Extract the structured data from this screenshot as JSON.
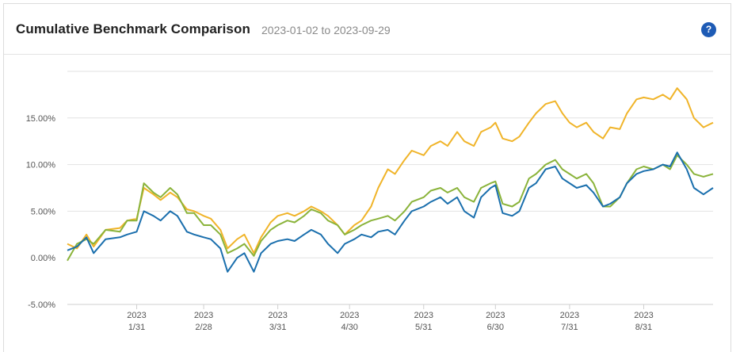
{
  "header": {
    "title": "Cumulative Benchmark Comparison",
    "date_range": "2023-01-02 to 2023-09-29",
    "help_glyph": "?"
  },
  "chart_data": {
    "type": "line",
    "ylim": [
      -5,
      20
    ],
    "y_ticks": [
      -5,
      0,
      5,
      10,
      15
    ],
    "y_tick_labels": [
      "-5.00%",
      "0.00%",
      "5.00%",
      "10.00%",
      "15.00%"
    ],
    "x_range": [
      "2023-01-02",
      "2023-09-29"
    ],
    "x_ticks": [
      {
        "date": "2023-01-31",
        "year": "2023",
        "md": "1/31"
      },
      {
        "date": "2023-02-28",
        "year": "2023",
        "md": "2/28"
      },
      {
        "date": "2023-03-31",
        "year": "2023",
        "md": "3/31"
      },
      {
        "date": "2023-04-30",
        "year": "2023",
        "md": "4/30"
      },
      {
        "date": "2023-05-31",
        "year": "2023",
        "md": "5/31"
      },
      {
        "date": "2023-06-30",
        "year": "2023",
        "md": "6/30"
      },
      {
        "date": "2023-07-31",
        "year": "2023",
        "md": "7/31"
      },
      {
        "date": "2023-08-31",
        "year": "2023",
        "md": "8/31"
      }
    ],
    "grid": "horizontal",
    "series": [
      {
        "color": "#f0b429",
        "points": [
          [
            "2023-01-02",
            1.5
          ],
          [
            "2023-01-06",
            1.0
          ],
          [
            "2023-01-10",
            2.5
          ],
          [
            "2023-01-13",
            1.2
          ],
          [
            "2023-01-18",
            3.0
          ],
          [
            "2023-01-24",
            3.2
          ],
          [
            "2023-01-27",
            4.0
          ],
          [
            "2023-01-31",
            4.2
          ],
          [
            "2023-02-03",
            7.5
          ],
          [
            "2023-02-07",
            6.8
          ],
          [
            "2023-02-10",
            6.2
          ],
          [
            "2023-02-14",
            7.0
          ],
          [
            "2023-02-17",
            6.5
          ],
          [
            "2023-02-21",
            5.2
          ],
          [
            "2023-02-24",
            5.0
          ],
          [
            "2023-02-28",
            4.5
          ],
          [
            "2023-03-03",
            4.2
          ],
          [
            "2023-03-07",
            3.0
          ],
          [
            "2023-03-10",
            1.0
          ],
          [
            "2023-03-14",
            2.0
          ],
          [
            "2023-03-17",
            2.5
          ],
          [
            "2023-03-21",
            0.5
          ],
          [
            "2023-03-24",
            2.2
          ],
          [
            "2023-03-28",
            3.8
          ],
          [
            "2023-03-31",
            4.5
          ],
          [
            "2023-04-04",
            4.8
          ],
          [
            "2023-04-07",
            4.5
          ],
          [
            "2023-04-11",
            5.0
          ],
          [
            "2023-04-14",
            5.5
          ],
          [
            "2023-04-18",
            5.0
          ],
          [
            "2023-04-21",
            4.5
          ],
          [
            "2023-04-25",
            3.5
          ],
          [
            "2023-04-28",
            2.5
          ],
          [
            "2023-05-02",
            3.5
          ],
          [
            "2023-05-05",
            4.0
          ],
          [
            "2023-05-09",
            5.5
          ],
          [
            "2023-05-12",
            7.5
          ],
          [
            "2023-05-16",
            9.5
          ],
          [
            "2023-05-19",
            9.0
          ],
          [
            "2023-05-23",
            10.5
          ],
          [
            "2023-05-26",
            11.5
          ],
          [
            "2023-05-31",
            11.0
          ],
          [
            "2023-06-03",
            12.0
          ],
          [
            "2023-06-07",
            12.5
          ],
          [
            "2023-06-10",
            12.0
          ],
          [
            "2023-06-14",
            13.5
          ],
          [
            "2023-06-17",
            12.5
          ],
          [
            "2023-06-21",
            12.0
          ],
          [
            "2023-06-24",
            13.5
          ],
          [
            "2023-06-28",
            14.0
          ],
          [
            "2023-06-30",
            14.5
          ],
          [
            "2023-07-03",
            12.8
          ],
          [
            "2023-07-07",
            12.5
          ],
          [
            "2023-07-10",
            13.0
          ],
          [
            "2023-07-14",
            14.5
          ],
          [
            "2023-07-17",
            15.5
          ],
          [
            "2023-07-21",
            16.5
          ],
          [
            "2023-07-25",
            16.8
          ],
          [
            "2023-07-28",
            15.5
          ],
          [
            "2023-07-31",
            14.5
          ],
          [
            "2023-08-03",
            14.0
          ],
          [
            "2023-08-07",
            14.5
          ],
          [
            "2023-08-10",
            13.5
          ],
          [
            "2023-08-14",
            12.8
          ],
          [
            "2023-08-17",
            14.0
          ],
          [
            "2023-08-21",
            13.8
          ],
          [
            "2023-08-24",
            15.5
          ],
          [
            "2023-08-28",
            17.0
          ],
          [
            "2023-08-31",
            17.2
          ],
          [
            "2023-09-04",
            17.0
          ],
          [
            "2023-09-08",
            17.5
          ],
          [
            "2023-09-11",
            17.0
          ],
          [
            "2023-09-14",
            18.2
          ],
          [
            "2023-09-18",
            17.0
          ],
          [
            "2023-09-21",
            15.0
          ],
          [
            "2023-09-25",
            14.0
          ],
          [
            "2023-09-29",
            14.5
          ]
        ]
      },
      {
        "color": "#8ab33a",
        "points": [
          [
            "2023-01-02",
            -0.3
          ],
          [
            "2023-01-06",
            1.5
          ],
          [
            "2023-01-10",
            2.0
          ],
          [
            "2023-01-13",
            1.5
          ],
          [
            "2023-01-18",
            3.0
          ],
          [
            "2023-01-24",
            2.8
          ],
          [
            "2023-01-27",
            4.0
          ],
          [
            "2023-01-31",
            4.0
          ],
          [
            "2023-02-03",
            8.0
          ],
          [
            "2023-02-07",
            7.0
          ],
          [
            "2023-02-10",
            6.5
          ],
          [
            "2023-02-14",
            7.5
          ],
          [
            "2023-02-17",
            6.8
          ],
          [
            "2023-02-21",
            4.8
          ],
          [
            "2023-02-24",
            4.8
          ],
          [
            "2023-02-28",
            3.5
          ],
          [
            "2023-03-03",
            3.5
          ],
          [
            "2023-03-07",
            2.5
          ],
          [
            "2023-03-10",
            0.5
          ],
          [
            "2023-03-14",
            1.0
          ],
          [
            "2023-03-17",
            1.5
          ],
          [
            "2023-03-21",
            0.2
          ],
          [
            "2023-03-24",
            1.8
          ],
          [
            "2023-03-28",
            3.0
          ],
          [
            "2023-03-31",
            3.5
          ],
          [
            "2023-04-04",
            4.0
          ],
          [
            "2023-04-07",
            3.8
          ],
          [
            "2023-04-11",
            4.5
          ],
          [
            "2023-04-14",
            5.2
          ],
          [
            "2023-04-18",
            4.8
          ],
          [
            "2023-04-21",
            4.0
          ],
          [
            "2023-04-25",
            3.5
          ],
          [
            "2023-04-28",
            2.5
          ],
          [
            "2023-05-02",
            3.0
          ],
          [
            "2023-05-05",
            3.5
          ],
          [
            "2023-05-09",
            4.0
          ],
          [
            "2023-05-12",
            4.2
          ],
          [
            "2023-05-16",
            4.5
          ],
          [
            "2023-05-19",
            4.0
          ],
          [
            "2023-05-23",
            5.0
          ],
          [
            "2023-05-26",
            6.0
          ],
          [
            "2023-05-31",
            6.5
          ],
          [
            "2023-06-03",
            7.2
          ],
          [
            "2023-06-07",
            7.5
          ],
          [
            "2023-06-10",
            7.0
          ],
          [
            "2023-06-14",
            7.5
          ],
          [
            "2023-06-17",
            6.5
          ],
          [
            "2023-06-21",
            6.0
          ],
          [
            "2023-06-24",
            7.5
          ],
          [
            "2023-06-28",
            8.0
          ],
          [
            "2023-06-30",
            8.2
          ],
          [
            "2023-07-03",
            5.8
          ],
          [
            "2023-07-07",
            5.5
          ],
          [
            "2023-07-10",
            6.0
          ],
          [
            "2023-07-14",
            8.5
          ],
          [
            "2023-07-17",
            9.0
          ],
          [
            "2023-07-21",
            10.0
          ],
          [
            "2023-07-25",
            10.5
          ],
          [
            "2023-07-28",
            9.5
          ],
          [
            "2023-07-31",
            9.0
          ],
          [
            "2023-08-03",
            8.5
          ],
          [
            "2023-08-07",
            9.0
          ],
          [
            "2023-08-10",
            8.0
          ],
          [
            "2023-08-14",
            5.5
          ],
          [
            "2023-08-17",
            5.5
          ],
          [
            "2023-08-21",
            6.5
          ],
          [
            "2023-08-24",
            8.0
          ],
          [
            "2023-08-28",
            9.5
          ],
          [
            "2023-08-31",
            9.8
          ],
          [
            "2023-09-04",
            9.5
          ],
          [
            "2023-09-08",
            10.0
          ],
          [
            "2023-09-11",
            9.5
          ],
          [
            "2023-09-14",
            11.0
          ],
          [
            "2023-09-18",
            10.0
          ],
          [
            "2023-09-21",
            9.0
          ],
          [
            "2023-09-25",
            8.7
          ],
          [
            "2023-09-29",
            9.0
          ]
        ]
      },
      {
        "color": "#1a6fad",
        "points": [
          [
            "2023-01-02",
            0.8
          ],
          [
            "2023-01-06",
            1.2
          ],
          [
            "2023-01-10",
            2.2
          ],
          [
            "2023-01-13",
            0.5
          ],
          [
            "2023-01-18",
            2.0
          ],
          [
            "2023-01-24",
            2.2
          ],
          [
            "2023-01-27",
            2.5
          ],
          [
            "2023-01-31",
            2.8
          ],
          [
            "2023-02-03",
            5.0
          ],
          [
            "2023-02-07",
            4.5
          ],
          [
            "2023-02-10",
            4.0
          ],
          [
            "2023-02-14",
            5.0
          ],
          [
            "2023-02-17",
            4.5
          ],
          [
            "2023-02-21",
            2.8
          ],
          [
            "2023-02-24",
            2.5
          ],
          [
            "2023-02-28",
            2.2
          ],
          [
            "2023-03-03",
            2.0
          ],
          [
            "2023-03-07",
            1.0
          ],
          [
            "2023-03-10",
            -1.5
          ],
          [
            "2023-03-14",
            0.0
          ],
          [
            "2023-03-17",
            0.5
          ],
          [
            "2023-03-21",
            -1.5
          ],
          [
            "2023-03-24",
            0.5
          ],
          [
            "2023-03-28",
            1.5
          ],
          [
            "2023-03-31",
            1.8
          ],
          [
            "2023-04-04",
            2.0
          ],
          [
            "2023-04-07",
            1.8
          ],
          [
            "2023-04-11",
            2.5
          ],
          [
            "2023-04-14",
            3.0
          ],
          [
            "2023-04-18",
            2.5
          ],
          [
            "2023-04-21",
            1.5
          ],
          [
            "2023-04-25",
            0.5
          ],
          [
            "2023-04-28",
            1.5
          ],
          [
            "2023-05-02",
            2.0
          ],
          [
            "2023-05-05",
            2.5
          ],
          [
            "2023-05-09",
            2.2
          ],
          [
            "2023-05-12",
            2.8
          ],
          [
            "2023-05-16",
            3.0
          ],
          [
            "2023-05-19",
            2.5
          ],
          [
            "2023-05-23",
            4.0
          ],
          [
            "2023-05-26",
            5.0
          ],
          [
            "2023-05-31",
            5.5
          ],
          [
            "2023-06-03",
            6.0
          ],
          [
            "2023-06-07",
            6.5
          ],
          [
            "2023-06-10",
            5.8
          ],
          [
            "2023-06-14",
            6.5
          ],
          [
            "2023-06-17",
            5.0
          ],
          [
            "2023-06-21",
            4.3
          ],
          [
            "2023-06-24",
            6.5
          ],
          [
            "2023-06-28",
            7.5
          ],
          [
            "2023-06-30",
            7.8
          ],
          [
            "2023-07-03",
            4.8
          ],
          [
            "2023-07-07",
            4.5
          ],
          [
            "2023-07-10",
            5.0
          ],
          [
            "2023-07-14",
            7.5
          ],
          [
            "2023-07-17",
            8.0
          ],
          [
            "2023-07-21",
            9.5
          ],
          [
            "2023-07-25",
            9.8
          ],
          [
            "2023-07-28",
            8.5
          ],
          [
            "2023-07-31",
            8.0
          ],
          [
            "2023-08-03",
            7.5
          ],
          [
            "2023-08-07",
            7.8
          ],
          [
            "2023-08-10",
            7.0
          ],
          [
            "2023-08-14",
            5.5
          ],
          [
            "2023-08-17",
            5.8
          ],
          [
            "2023-08-21",
            6.5
          ],
          [
            "2023-08-24",
            8.0
          ],
          [
            "2023-08-28",
            9.0
          ],
          [
            "2023-08-31",
            9.3
          ],
          [
            "2023-09-04",
            9.5
          ],
          [
            "2023-09-08",
            10.0
          ],
          [
            "2023-09-11",
            9.8
          ],
          [
            "2023-09-14",
            11.3
          ],
          [
            "2023-09-18",
            9.5
          ],
          [
            "2023-09-21",
            7.5
          ],
          [
            "2023-09-25",
            6.8
          ],
          [
            "2023-09-29",
            7.5
          ]
        ]
      }
    ]
  }
}
